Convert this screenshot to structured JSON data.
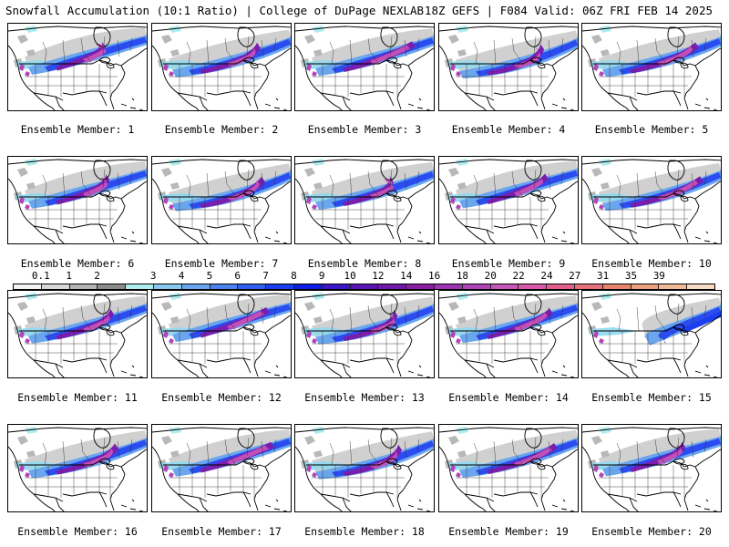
{
  "header": {
    "left": "Snowfall Accumulation (10:1 Ratio) | College of DuPage NEXLAB",
    "right": "18Z GEFS | F084 Valid: 06Z FRI FEB 14 2025"
  },
  "panels": [
    {
      "label": "Ensemble Member: 1"
    },
    {
      "label": "Ensemble Member: 2"
    },
    {
      "label": "Ensemble Member: 3"
    },
    {
      "label": "Ensemble Member: 4"
    },
    {
      "label": "Ensemble Member: 5"
    },
    {
      "label": "Ensemble Member: 6"
    },
    {
      "label": "Ensemble Member: 7"
    },
    {
      "label": "Ensemble Member: 8"
    },
    {
      "label": "Ensemble Member: 9"
    },
    {
      "label": "Ensemble Member: 10"
    },
    {
      "label": "Ensemble Member: 11"
    },
    {
      "label": "Ensemble Member: 12"
    },
    {
      "label": "Ensemble Member: 13"
    },
    {
      "label": "Ensemble Member: 14"
    },
    {
      "label": "Ensemble Member: 15"
    },
    {
      "label": "Ensemble Member: 16"
    },
    {
      "label": "Ensemble Member: 17"
    },
    {
      "label": "Ensemble Member: 18"
    },
    {
      "label": "Ensemble Member: 19"
    },
    {
      "label": "Ensemble Member: 20"
    }
  ],
  "colorbar": {
    "labels": [
      "0.1",
      "1",
      "2",
      "3",
      "4",
      "5",
      "6",
      "7",
      "8",
      "9",
      "10",
      "12",
      "14",
      "16",
      "18",
      "20",
      "22",
      "24",
      "27",
      "31",
      "35",
      "39"
    ],
    "colors": [
      "#f4f4f4",
      "#d8d8d8",
      "#b4b4b4",
      "#8c8c8c",
      "#aeeef0",
      "#86c8ee",
      "#6aa6ee",
      "#4a82ee",
      "#3060ee",
      "#1c3ef0",
      "#0c1ee8",
      "#3a18c8",
      "#5a16b4",
      "#7018a8",
      "#8a1ea4",
      "#9e34b4",
      "#b044b8",
      "#c458b8",
      "#d85aa8",
      "#e0608e",
      "#e47078",
      "#e8846c",
      "#eca07e",
      "#f0bc98",
      "#f6dcc4"
    ]
  }
}
